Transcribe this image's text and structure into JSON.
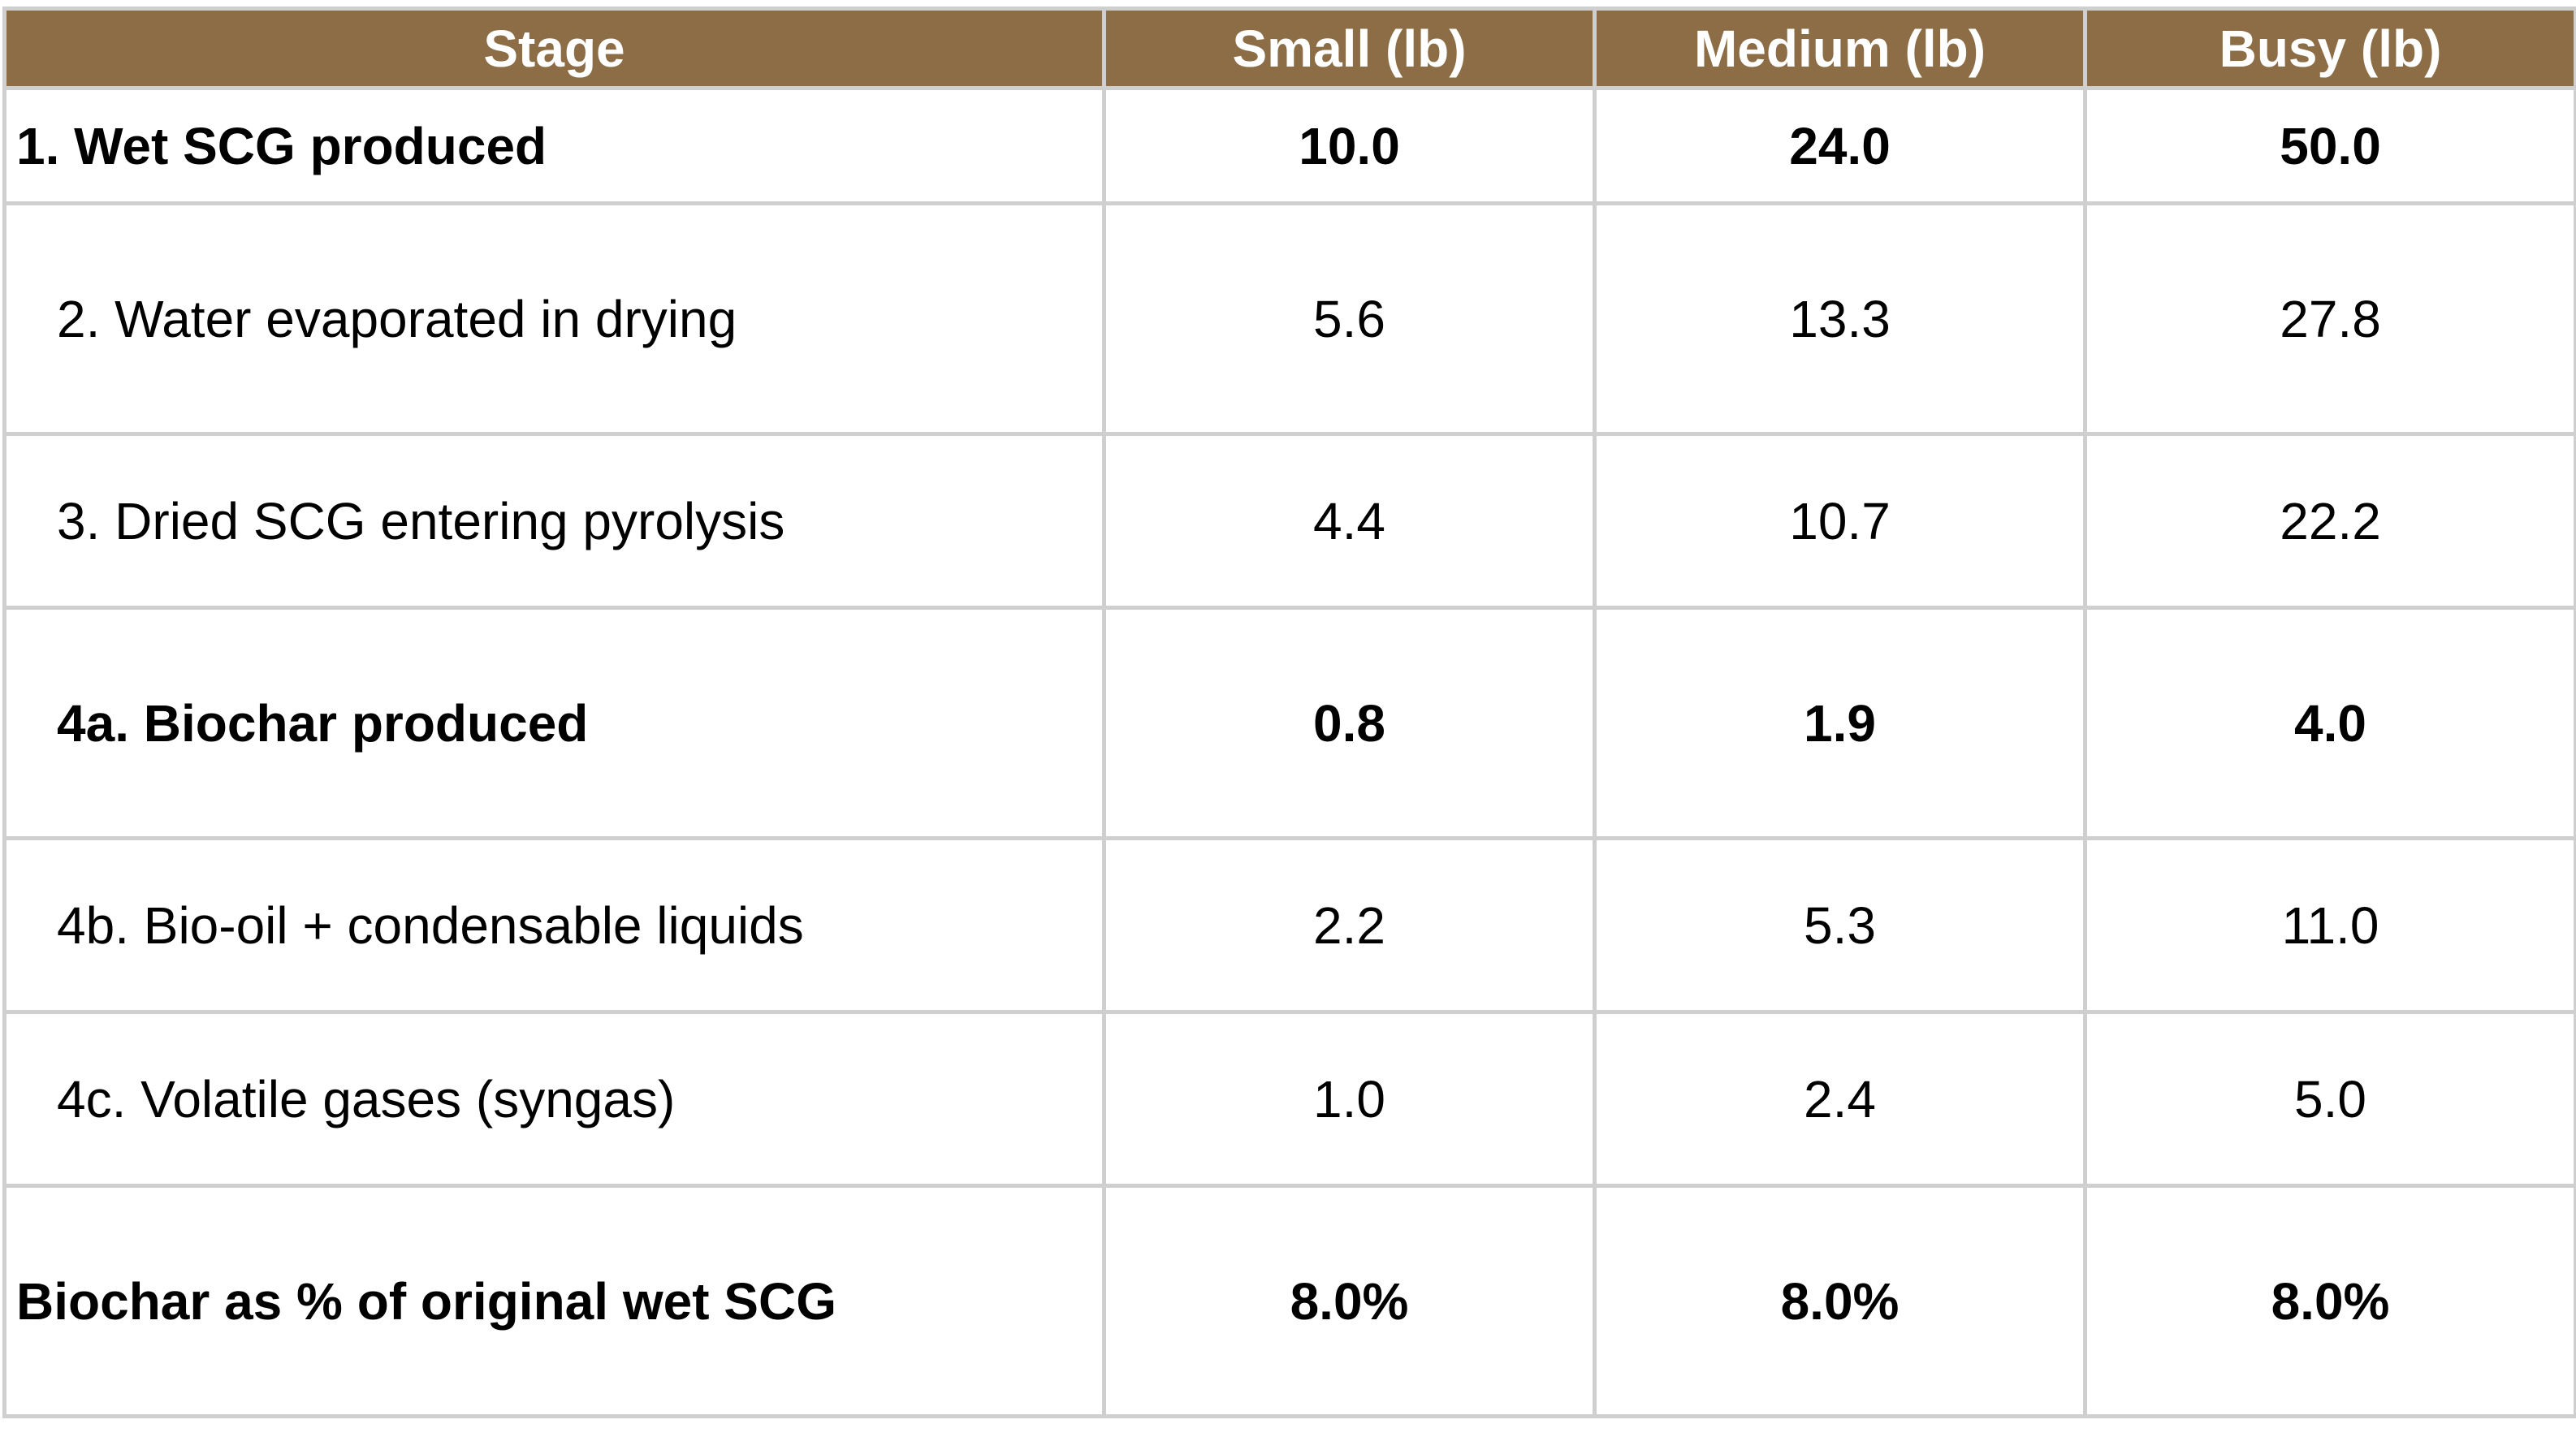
{
  "table": {
    "headers": {
      "stage": "Stage",
      "small": "Small (lb)",
      "medium": "Medium (lb)",
      "busy": "Busy (lb)"
    },
    "rows": [
      {
        "stage": "1. Wet SCG produced",
        "small": "10.0",
        "medium": "24.0",
        "busy": "50.0"
      },
      {
        "stage": "2. Water evaporated in drying",
        "small": "5.6",
        "medium": "13.3",
        "busy": "27.8"
      },
      {
        "stage": "3. Dried SCG entering pyrolysis",
        "small": "4.4",
        "medium": "10.7",
        "busy": "22.2"
      },
      {
        "stage": "4a. Biochar produced",
        "small": "0.8",
        "medium": "1.9",
        "busy": "4.0"
      },
      {
        "stage": "4b. Bio-oil + condensable liquids",
        "small": "2.2",
        "medium": "5.3",
        "busy": "11.0"
      },
      {
        "stage": "4c. Volatile gases (syngas)",
        "small": "1.0",
        "medium": "2.4",
        "busy": "5.0"
      },
      {
        "stage": "Biochar as % of original wet SCG",
        "small": "8.0%",
        "medium": "8.0%",
        "busy": "8.0%"
      }
    ]
  },
  "colors": {
    "header_background": "#8c6d45",
    "header_text": "#ffffff",
    "grid_line": "#cfcfcf"
  }
}
